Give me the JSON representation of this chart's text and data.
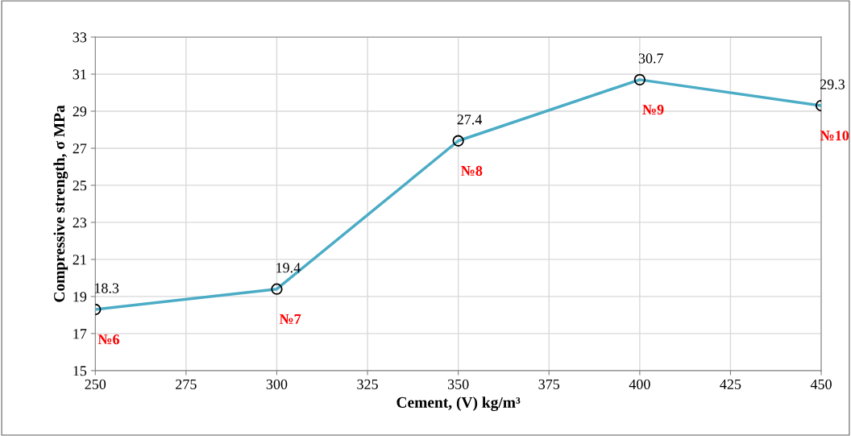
{
  "chart_data": {
    "type": "line",
    "xlabel": "Cement, (V) kg/m³",
    "ylabel": "Compressive strength, σ MPa",
    "x": [
      250,
      300,
      350,
      400,
      450
    ],
    "series": [
      {
        "color": "#4bacc6",
        "values": [
          18.3,
          19.4,
          27.4,
          30.7,
          29.3
        ]
      }
    ],
    "data_labels": true,
    "marker": "circle",
    "line_style": "solid",
    "grid": true,
    "xlim": [
      250,
      450
    ],
    "xticks": [
      250,
      275,
      300,
      325,
      350,
      375,
      400,
      425,
      450
    ],
    "ylim": [
      15,
      33
    ],
    "yticks": [
      15,
      17,
      19,
      21,
      23,
      25,
      27,
      29,
      31,
      33
    ],
    "annotations": [
      {
        "text": "№6",
        "x": 250,
        "y": 18.3
      },
      {
        "text": "№7",
        "x": 300,
        "y": 19.4
      },
      {
        "text": "№8",
        "x": 350,
        "y": 27.4
      },
      {
        "text": "№9",
        "x": 400,
        "y": 30.7
      },
      {
        "text": "№10",
        "x": 450,
        "y": 29.3
      }
    ]
  }
}
